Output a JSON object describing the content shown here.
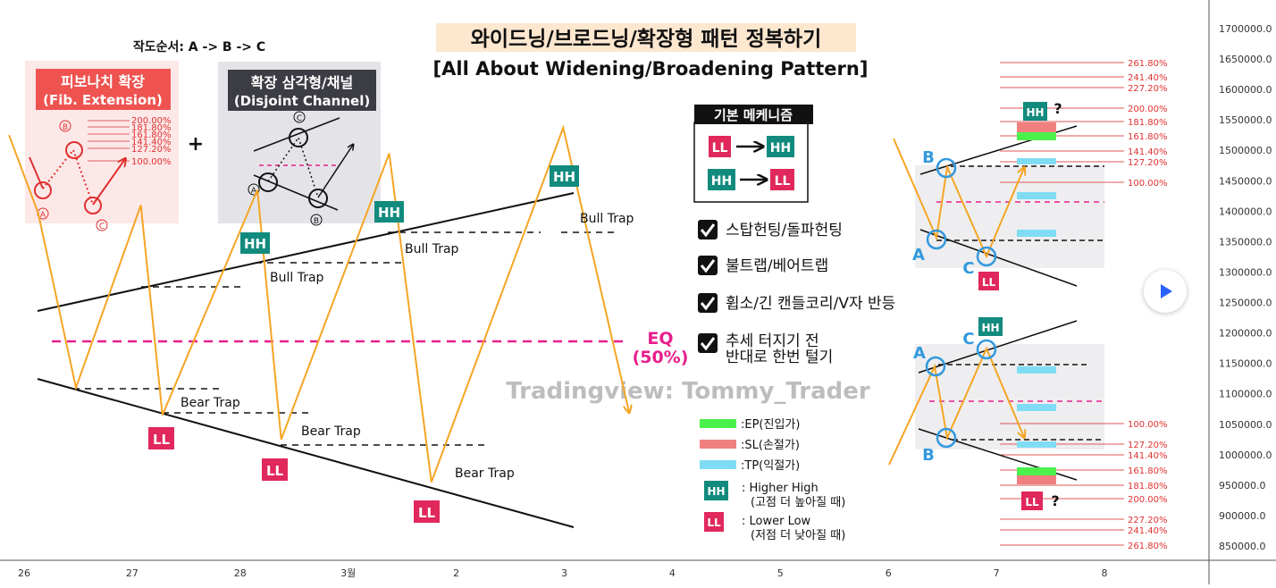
{
  "title": "와이드닝/브로드닝/확장형 패턴 정복하기",
  "subtitle": "[All About Widening/Broadening Pattern]",
  "watermark": "Tradingview: Tommy_Trader",
  "order_note": "작도순서: A -> B -> C",
  "fib_box": {
    "title1": "피보나치 확장",
    "title2": "(Fib. Extension)",
    "levels": [
      "200.00%",
      "181.80%",
      "161.80%",
      "141.40%",
      "127.20%",
      "100.00%"
    ],
    "points": [
      "A",
      "B",
      "C"
    ]
  },
  "plus": "+",
  "channel_box": {
    "title1": "확장 삼각형/채널",
    "title2": "(Disjoint Channel)",
    "points": [
      "A",
      "B",
      "C"
    ]
  },
  "main_labels": {
    "hh": "HH",
    "ll": "LL",
    "bull_trap": "Bull Trap",
    "bear_trap": "Bear Trap",
    "eq1": "EQ",
    "eq2": "(50%)"
  },
  "mechanism": {
    "title": "기본 메케니즘",
    "rows": [
      [
        "LL",
        "HH"
      ],
      [
        "HH",
        "LL"
      ]
    ],
    "checks": [
      "스탑헌팅/돌파헌팅",
      "불트랩/베어트랩",
      "휩소/긴 캔들코리/V자 반등",
      "추세 터지기 전",
      "반대로 한번 털기"
    ]
  },
  "legend": [
    {
      "color": "#4cf04c",
      "label": ":EP(진입가)"
    },
    {
      "color": "#f08080",
      "label": ":SL(손절가)"
    },
    {
      "color": "#7fdcf4",
      "label": ":TP(익절가)"
    }
  ],
  "hh_legend": {
    "tag": "HH",
    "line1": ": Higher High",
    "line2": "(고점 더 높아질 때)"
  },
  "ll_legend": {
    "tag": "LL",
    "line1": ": Lower Low",
    "line2": "(저점 더 낮아질 때)"
  },
  "upper_fib": [
    "261.80%",
    "241.40%",
    "227.20%",
    "200.00%",
    "181.80%",
    "161.80%",
    "141.40%",
    "127.20%",
    "100.00%"
  ],
  "lower_fib": [
    "100.00%",
    "127.20%",
    "141.40%",
    "161.80%",
    "181.80%",
    "200.00%",
    "227.20%",
    "241.40%",
    "261.80%"
  ],
  "right_labels": {
    "a": "A",
    "b": "B",
    "c": "C",
    "hh": "HH",
    "ll": "LL",
    "q": "?"
  },
  "colors": {
    "accent_pink": "#e91e8c",
    "teal": "#128b7e",
    "orange": "#f5a524",
    "blue": "#3399dd",
    "fib_red": "#e05555"
  },
  "chart_data": {
    "type": "line",
    "title": "",
    "xlabel": "",
    "ylabel": "",
    "x_ticks": [
      "26",
      "27",
      "28",
      "3월",
      "2",
      "3",
      "4",
      "5",
      "6",
      "7",
      "8"
    ],
    "y_ticks": [
      850000,
      900000,
      950000,
      1000000,
      1050000,
      1100000,
      1150000,
      1200000,
      1250000,
      1300000,
      1350000,
      1400000,
      1450000,
      1500000,
      1550000,
      1600000,
      1650000,
      1700000
    ],
    "y_tick_labels": [
      "850000.0",
      "900000.0",
      "950000.0",
      "1000000.0",
      "1050000.0",
      "1100000.0",
      "1150000.0",
      "1200000.0",
      "1250000.0",
      "1300000.0",
      "1350000.0",
      "1400000.0",
      "1450000.0",
      "1500000.0",
      "1550000.0",
      "1600000.0",
      "1650000.0",
      "1700000.0"
    ],
    "ylim": [
      826000,
      1724000
    ],
    "grid": false,
    "main_path": {
      "x": [
        25.86,
        26.13,
        26.48,
        27.08,
        27.28,
        28.16,
        28.38,
        29.38,
        29.77,
        30.99,
        31.6
      ],
      "y": [
        1525000,
        1397000,
        1110000,
        1410000,
        1065000,
        1435000,
        1025000,
        1495000,
        955000,
        1537000,
        1070000
      ]
    }
  }
}
